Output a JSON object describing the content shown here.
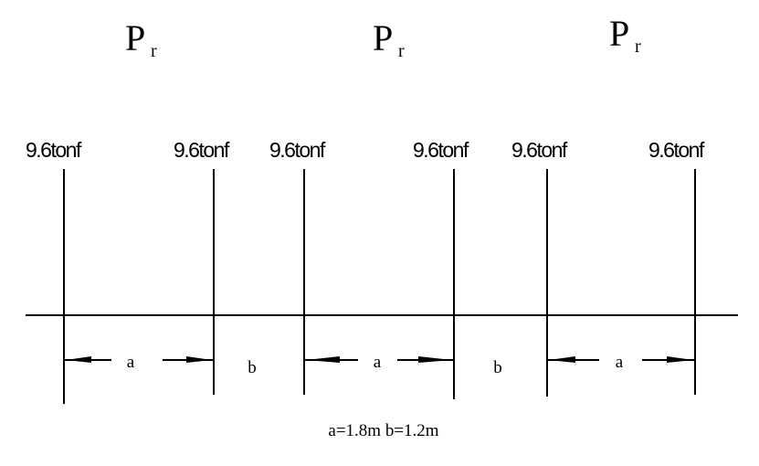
{
  "loads": [
    {
      "label": "P",
      "subscript": "r",
      "forces": [
        "9.6tonf",
        "9.6tonf"
      ]
    },
    {
      "label": "P",
      "subscript": "r",
      "forces": [
        "9.6tonf",
        "9.6tonf"
      ]
    },
    {
      "label": "P",
      "subscript": "r",
      "forces": [
        "9.6tonf",
        "9.6tonf"
      ]
    }
  ],
  "dimensions": [
    "a",
    "b",
    "a",
    "b",
    "a"
  ],
  "caption": "a=1.8m b=1.2m"
}
